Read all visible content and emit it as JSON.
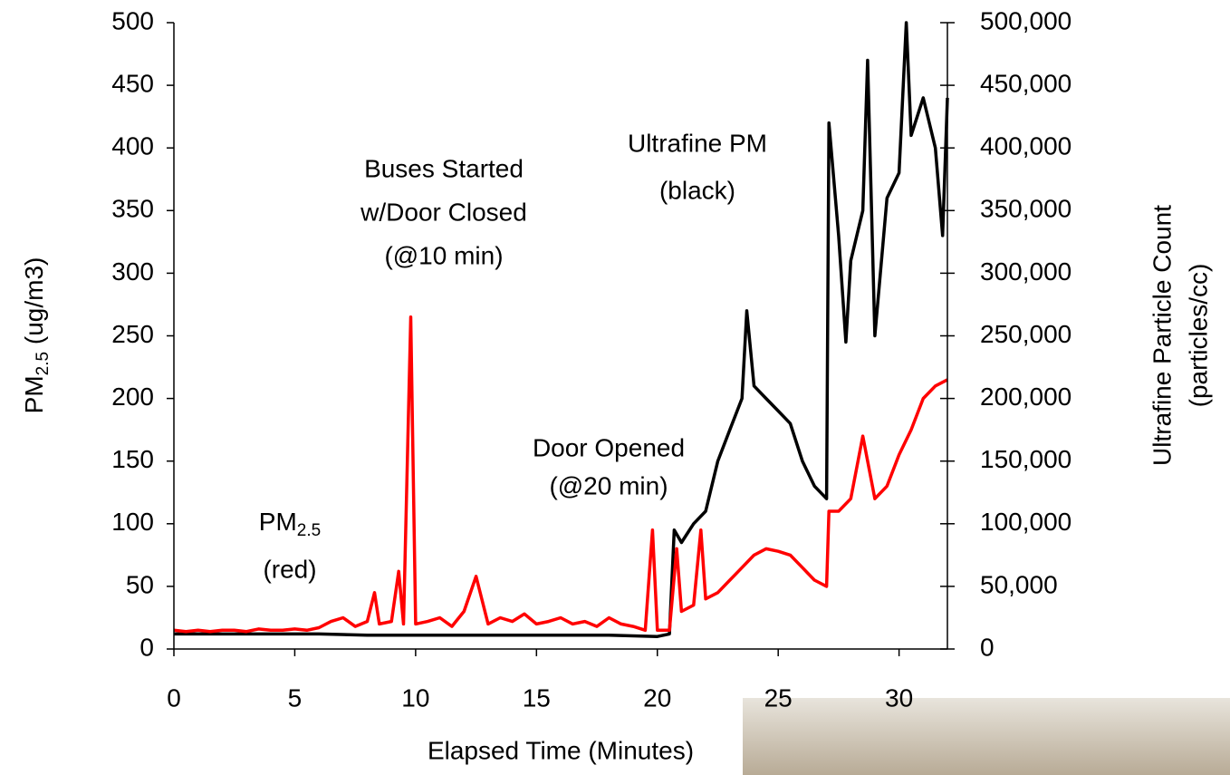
{
  "chart_data": {
    "type": "line",
    "x_label": "Elapsed Time (Minutes)",
    "y_label": {
      "main": "PM",
      "sub": "2.5",
      "rest": " (ug/m3)"
    },
    "y2_label": [
      "Ultrafine Particle Count",
      "(particles/cc)"
    ],
    "annotations": {
      "buses": [
        "Buses Started",
        "w/Door Closed",
        "(@10 min)"
      ],
      "ultrafine": [
        "Ultrafine PM",
        "(black)"
      ],
      "door": [
        "Door Opened",
        "(@20 min)"
      ],
      "pm": {
        "main": "PM",
        "sub": "2.5",
        "second": "(red)"
      }
    },
    "xlim": [
      0,
      32
    ],
    "xticks": [
      0,
      5,
      10,
      15,
      20,
      25,
      30
    ],
    "ylim": [
      0,
      500
    ],
    "yticks": [
      0,
      50,
      100,
      150,
      200,
      250,
      300,
      350,
      400,
      450,
      500
    ],
    "y2lim": [
      0,
      500000
    ],
    "y2ticks": [
      0,
      {
        "value": 50000,
        "label": "50,000"
      },
      {
        "value": 100000,
        "label": "100,000"
      },
      {
        "value": 150000,
        "label": "150,000"
      },
      {
        "value": 200000,
        "label": "200,000"
      },
      {
        "value": 250000,
        "label": "250,000"
      },
      {
        "value": 300000,
        "label": "300,000"
      },
      {
        "value": 350000,
        "label": "350,000"
      },
      {
        "value": 400000,
        "label": "400,000"
      },
      {
        "value": 450000,
        "label": "450,000"
      },
      {
        "value": 500000,
        "label": "500,000"
      }
    ],
    "series": [
      {
        "color": "#000000",
        "axis": "y2",
        "x": [
          0,
          2,
          4,
          6,
          8,
          10,
          12,
          14,
          16,
          18,
          20,
          20.5,
          20.7,
          21,
          21.5,
          22,
          22.5,
          23,
          23.5,
          23.7,
          24,
          24.5,
          25,
          25.5,
          26,
          26.5,
          27,
          27.1,
          27.5,
          27.8,
          28,
          28.5,
          28.7,
          29,
          29.5,
          30,
          30.3,
          30.5,
          31,
          31.5,
          31.8,
          32
        ],
        "values": [
          12000,
          12000,
          12000,
          12000,
          11000,
          11000,
          11000,
          11000,
          11000,
          11000,
          10000,
          12000,
          95000,
          85000,
          100000,
          110000,
          150000,
          175000,
          200000,
          270000,
          210000,
          200000,
          190000,
          180000,
          150000,
          130000,
          120000,
          420000,
          330000,
          245000,
          310000,
          350000,
          470000,
          250000,
          360000,
          380000,
          500000,
          410000,
          440000,
          400000,
          330000,
          440000
        ]
      },
      {
        "color": "#ff0000",
        "axis": "y",
        "x": [
          0,
          0.5,
          1,
          1.5,
          2,
          2.5,
          3,
          3.5,
          4,
          4.5,
          5,
          5.5,
          6,
          6.5,
          7,
          7.5,
          8,
          8.3,
          8.5,
          9,
          9.3,
          9.5,
          9.8,
          10,
          10.5,
          11,
          11.5,
          12,
          12.5,
          13,
          13.5,
          14,
          14.5,
          15,
          15.5,
          16,
          16.5,
          17,
          17.5,
          18,
          18.5,
          19,
          19.5,
          19.8,
          20,
          20.5,
          20.8,
          21,
          21.5,
          21.8,
          22,
          22.5,
          23,
          23.5,
          24,
          24.5,
          25,
          25.5,
          26,
          26.5,
          27,
          27.1,
          27.5,
          28,
          28.5,
          29,
          29.5,
          30,
          30.5,
          31,
          31.5,
          32
        ],
        "values": [
          15,
          14,
          15,
          14,
          15,
          15,
          14,
          16,
          15,
          15,
          16,
          15,
          17,
          22,
          25,
          18,
          22,
          45,
          20,
          22,
          62,
          20,
          265,
          20,
          22,
          25,
          18,
          30,
          58,
          20,
          25,
          22,
          28,
          20,
          22,
          25,
          20,
          22,
          18,
          25,
          20,
          18,
          15,
          95,
          15,
          15,
          80,
          30,
          35,
          95,
          40,
          45,
          55,
          65,
          75,
          80,
          78,
          75,
          65,
          55,
          50,
          110,
          110,
          120,
          170,
          120,
          130,
          155,
          175,
          200,
          210,
          215
        ]
      }
    ]
  }
}
